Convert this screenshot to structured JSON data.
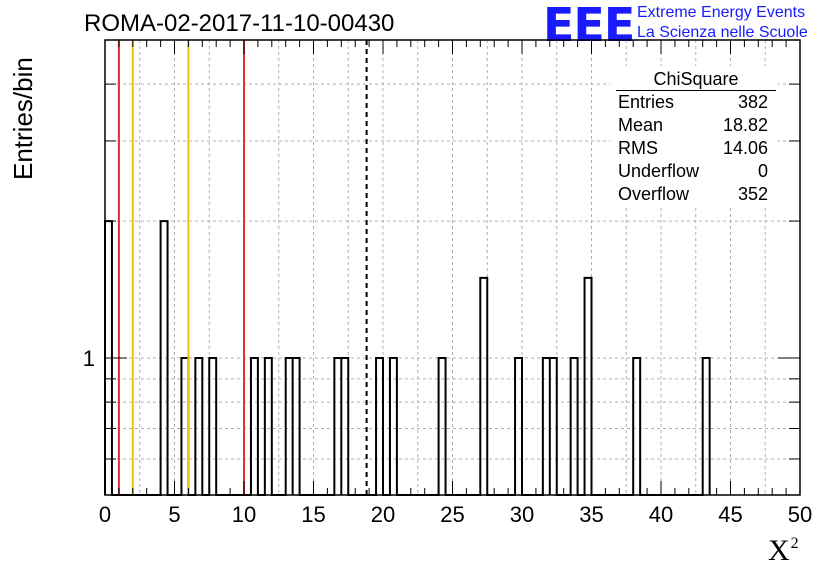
{
  "title": "ROMA-02-2017-11-10-00430",
  "logo": {
    "text": "EEE",
    "line1": "Extreme Energy Events",
    "line2": "La Scienza nelle Scuole",
    "color": "#1a1aff"
  },
  "stats": {
    "title": "ChiSquare",
    "rows": [
      {
        "label": "Entries",
        "value": "382"
      },
      {
        "label": "Mean",
        "value": "18.82"
      },
      {
        "label": "RMS",
        "value": "14.06"
      },
      {
        "label": "Underflow",
        "value": "0"
      },
      {
        "label": "Overflow",
        "value": "352"
      }
    ]
  },
  "chart_data": {
    "type": "bar",
    "title": "ROMA-02-2017-11-10-00430",
    "xlabel": "X",
    "xlabel_superscript": "2",
    "ylabel": "Entries/bin",
    "xlim": [
      0,
      50
    ],
    "ylim": [
      0.5,
      5
    ],
    "log_y": true,
    "grid": true,
    "bin_width": 0.5,
    "x_ticks": [
      "0",
      "5",
      "10",
      "15",
      "20",
      "25",
      "30",
      "35",
      "40",
      "45",
      "50"
    ],
    "y_tick_labels": [
      "1"
    ],
    "bins": [
      {
        "x": 0.0,
        "value": 2
      },
      {
        "x": 4.0,
        "value": 2
      },
      {
        "x": 5.5,
        "value": 1
      },
      {
        "x": 6.5,
        "value": 1
      },
      {
        "x": 7.5,
        "value": 1
      },
      {
        "x": 10.5,
        "value": 1
      },
      {
        "x": 11.5,
        "value": 1
      },
      {
        "x": 13.0,
        "value": 1
      },
      {
        "x": 13.5,
        "value": 1
      },
      {
        "x": 16.5,
        "value": 1
      },
      {
        "x": 17.0,
        "value": 1
      },
      {
        "x": 19.5,
        "value": 1
      },
      {
        "x": 20.5,
        "value": 1
      },
      {
        "x": 24.0,
        "value": 1
      },
      {
        "x": 27.0,
        "value": 1.5
      },
      {
        "x": 29.5,
        "value": 1
      },
      {
        "x": 31.5,
        "value": 1
      },
      {
        "x": 32.0,
        "value": 1
      },
      {
        "x": 33.5,
        "value": 1
      },
      {
        "x": 34.5,
        "value": 1.5
      },
      {
        "x": 38.0,
        "value": 1
      },
      {
        "x": 43.0,
        "value": 1
      }
    ],
    "vertical_lines": [
      {
        "x": 1.0,
        "color": "#e03030",
        "style": "solid"
      },
      {
        "x": 2.0,
        "color": "#f5c000",
        "style": "solid"
      },
      {
        "x": 6.0,
        "color": "#f5c000",
        "style": "solid"
      },
      {
        "x": 10.0,
        "color": "#e03030",
        "style": "solid"
      },
      {
        "x": 18.82,
        "color": "#000000",
        "style": "dashed"
      }
    ]
  }
}
